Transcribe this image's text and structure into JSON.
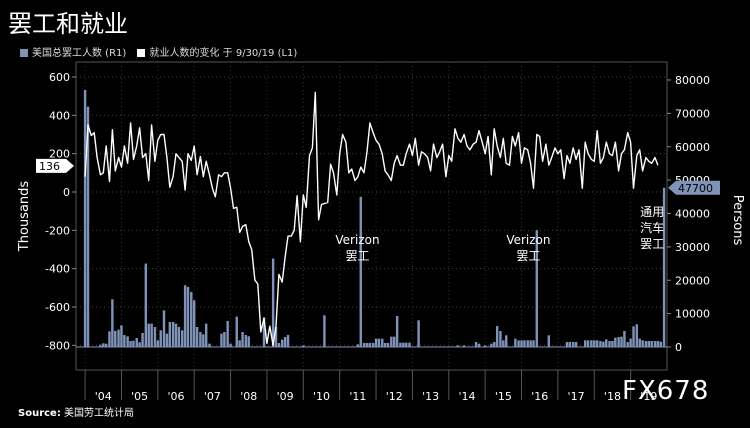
{
  "title": "罢工和就业",
  "legend": {
    "bars_label": "美国总罢工人数 (R1)",
    "line_label": "就业人数的变化 于 9/30/19 (L1)",
    "bar_color": "#7f93b8",
    "line_color": "#ffffff"
  },
  "source": {
    "prefix": "Source:",
    "text": "美国劳工统计局"
  },
  "watermark": "FX678",
  "chart_data": {
    "type": "bar+line",
    "left_axis": {
      "label": "Thousands",
      "ticks": [
        600,
        400,
        200,
        0,
        -200,
        -400,
        -600,
        -800
      ],
      "range": [
        -800,
        640
      ]
    },
    "right_axis": {
      "label": "Persons",
      "ticks": [
        80000,
        70000,
        60000,
        50000,
        40000,
        30000,
        20000,
        10000,
        0
      ],
      "range": [
        0,
        85000
      ]
    },
    "x_labels": [
      "'04",
      "'05",
      "'06",
      "'07",
      "'08",
      "'09",
      "'10",
      "'11",
      "'12",
      "'13",
      "'14",
      "'15",
      "'16",
      "'17",
      "'18",
      "'19"
    ],
    "current_line_value": "136",
    "current_bar_value": "47700",
    "annotations": [
      {
        "lines": [
          "Verizon",
          "罢工"
        ],
        "date": 2011.6
      },
      {
        "lines": [
          "Verizon",
          "罢工"
        ],
        "date": 2016.3
      },
      {
        "lines": [
          "通用",
          "汽车",
          "罢工"
        ],
        "date": 2019.7
      }
    ],
    "bars": [
      [
        2004.0,
        77000
      ],
      [
        2004.08,
        72000
      ],
      [
        2004.17,
        0
      ],
      [
        2004.25,
        0
      ],
      [
        2004.33,
        0
      ],
      [
        2004.42,
        700
      ],
      [
        2004.5,
        1100
      ],
      [
        2004.58,
        1000
      ],
      [
        2004.67,
        4700
      ],
      [
        2004.75,
        14300
      ],
      [
        2004.83,
        4800
      ],
      [
        2004.92,
        5200
      ],
      [
        2005.0,
        6500
      ],
      [
        2005.08,
        3600
      ],
      [
        2005.17,
        3200
      ],
      [
        2005.25,
        1800
      ],
      [
        2005.33,
        1900
      ],
      [
        2005.42,
        2700
      ],
      [
        2005.5,
        1400
      ],
      [
        2005.58,
        4200
      ],
      [
        2005.67,
        25000
      ],
      [
        2005.75,
        7000
      ],
      [
        2005.83,
        7000
      ],
      [
        2005.92,
        6000
      ],
      [
        2006.0,
        2000
      ],
      [
        2006.08,
        5000
      ],
      [
        2006.17,
        11000
      ],
      [
        2006.25,
        4000
      ],
      [
        2006.33,
        7500
      ],
      [
        2006.42,
        7500
      ],
      [
        2006.5,
        7000
      ],
      [
        2006.58,
        6000
      ],
      [
        2006.67,
        5000
      ],
      [
        2006.75,
        18500
      ],
      [
        2006.83,
        18000
      ],
      [
        2006.92,
        16500
      ],
      [
        2007.0,
        14000
      ],
      [
        2007.08,
        6000
      ],
      [
        2007.17,
        4500
      ],
      [
        2007.25,
        3800
      ],
      [
        2007.33,
        7000
      ],
      [
        2007.42,
        1000
      ],
      [
        2007.5,
        0
      ],
      [
        2007.58,
        0
      ],
      [
        2007.67,
        0
      ],
      [
        2007.75,
        4000
      ],
      [
        2007.83,
        4500
      ],
      [
        2007.92,
        7800
      ],
      [
        2008.0,
        1000
      ],
      [
        2008.08,
        0
      ],
      [
        2008.17,
        9100
      ],
      [
        2008.25,
        2000
      ],
      [
        2008.33,
        4500
      ],
      [
        2008.42,
        3600
      ],
      [
        2008.5,
        3200
      ],
      [
        2008.58,
        0
      ],
      [
        2008.67,
        0
      ],
      [
        2008.75,
        0
      ],
      [
        2008.83,
        0
      ],
      [
        2008.92,
        8900
      ],
      [
        2009.0,
        0
      ],
      [
        2009.08,
        0
      ],
      [
        2009.17,
        26500
      ],
      [
        2009.25,
        6000
      ],
      [
        2009.33,
        1200
      ],
      [
        2009.42,
        2200
      ],
      [
        2009.5,
        3000
      ],
      [
        2009.58,
        3600
      ],
      [
        2009.67,
        0
      ],
      [
        2009.75,
        0
      ],
      [
        2009.83,
        0
      ],
      [
        2009.92,
        0
      ],
      [
        2010.0,
        500
      ],
      [
        2010.08,
        0
      ],
      [
        2010.17,
        0
      ],
      [
        2010.25,
        0
      ],
      [
        2010.33,
        0
      ],
      [
        2010.42,
        0
      ],
      [
        2010.5,
        0
      ],
      [
        2010.58,
        9500
      ],
      [
        2010.67,
        0
      ],
      [
        2010.75,
        0
      ],
      [
        2010.83,
        0
      ],
      [
        2010.92,
        0
      ],
      [
        2011.0,
        0
      ],
      [
        2011.08,
        0
      ],
      [
        2011.17,
        0
      ],
      [
        2011.25,
        0
      ],
      [
        2011.33,
        0
      ],
      [
        2011.42,
        0
      ],
      [
        2011.5,
        800
      ],
      [
        2011.58,
        45000
      ],
      [
        2011.67,
        1200
      ],
      [
        2011.75,
        1200
      ],
      [
        2011.83,
        1200
      ],
      [
        2011.92,
        1200
      ],
      [
        2012.0,
        2500
      ],
      [
        2012.08,
        2500
      ],
      [
        2012.17,
        2500
      ],
      [
        2012.25,
        1200
      ],
      [
        2012.33,
        1200
      ],
      [
        2012.42,
        3100
      ],
      [
        2012.5,
        3100
      ],
      [
        2012.58,
        9300
      ],
      [
        2012.67,
        1300
      ],
      [
        2012.75,
        1300
      ],
      [
        2012.83,
        1300
      ],
      [
        2012.92,
        1300
      ],
      [
        2013.0,
        0
      ],
      [
        2013.08,
        0
      ],
      [
        2013.17,
        8000
      ],
      [
        2013.25,
        0
      ],
      [
        2013.33,
        0
      ],
      [
        2013.42,
        0
      ],
      [
        2013.5,
        0
      ],
      [
        2013.58,
        0
      ],
      [
        2013.67,
        0
      ],
      [
        2013.75,
        0
      ],
      [
        2013.83,
        0
      ],
      [
        2013.92,
        0
      ],
      [
        2014.0,
        0
      ],
      [
        2014.08,
        0
      ],
      [
        2014.17,
        0
      ],
      [
        2014.25,
        500
      ],
      [
        2014.33,
        0
      ],
      [
        2014.42,
        500
      ],
      [
        2014.5,
        0
      ],
      [
        2014.58,
        0
      ],
      [
        2014.67,
        0
      ],
      [
        2014.75,
        1500
      ],
      [
        2014.83,
        1000
      ],
      [
        2014.92,
        0
      ],
      [
        2015.0,
        500
      ],
      [
        2015.08,
        0
      ],
      [
        2015.17,
        1000
      ],
      [
        2015.25,
        1500
      ],
      [
        2015.33,
        6300
      ],
      [
        2015.42,
        4800
      ],
      [
        2015.5,
        2000
      ],
      [
        2015.58,
        3500
      ],
      [
        2015.67,
        0
      ],
      [
        2015.75,
        0
      ],
      [
        2015.83,
        2500
      ],
      [
        2015.92,
        2000
      ],
      [
        2016.0,
        2000
      ],
      [
        2016.08,
        2000
      ],
      [
        2016.17,
        2000
      ],
      [
        2016.25,
        2000
      ],
      [
        2016.33,
        2000
      ],
      [
        2016.42,
        35000
      ],
      [
        2016.5,
        0
      ],
      [
        2016.58,
        0
      ],
      [
        2016.67,
        0
      ],
      [
        2016.75,
        3500
      ],
      [
        2016.83,
        0
      ],
      [
        2016.92,
        0
      ],
      [
        2017.0,
        0
      ],
      [
        2017.08,
        0
      ],
      [
        2017.17,
        0
      ],
      [
        2017.25,
        1500
      ],
      [
        2017.33,
        1500
      ],
      [
        2017.42,
        1500
      ],
      [
        2017.5,
        1500
      ],
      [
        2017.58,
        0
      ],
      [
        2017.67,
        0
      ],
      [
        2017.75,
        2000
      ],
      [
        2017.83,
        2000
      ],
      [
        2017.92,
        2000
      ],
      [
        2018.0,
        2000
      ],
      [
        2018.08,
        2000
      ],
      [
        2018.17,
        1800
      ],
      [
        2018.25,
        1600
      ],
      [
        2018.33,
        2300
      ],
      [
        2018.42,
        1800
      ],
      [
        2018.5,
        1800
      ],
      [
        2018.58,
        2800
      ],
      [
        2018.67,
        3000
      ],
      [
        2018.75,
        3100
      ],
      [
        2018.83,
        4800
      ],
      [
        2018.92,
        1500
      ],
      [
        2019.0,
        2500
      ],
      [
        2019.08,
        6200
      ],
      [
        2019.17,
        6800
      ],
      [
        2019.25,
        2500
      ],
      [
        2019.33,
        2000
      ],
      [
        2019.42,
        1800
      ],
      [
        2019.5,
        1800
      ],
      [
        2019.58,
        1800
      ],
      [
        2019.67,
        1800
      ],
      [
        2019.75,
        1800
      ],
      [
        2019.83,
        1600
      ],
      [
        2019.92,
        47700
      ]
    ],
    "line": [
      [
        2004.0,
        80
      ],
      [
        2004.08,
        350
      ],
      [
        2004.17,
        295
      ],
      [
        2004.25,
        310
      ],
      [
        2004.33,
        180
      ],
      [
        2004.42,
        90
      ],
      [
        2004.5,
        100
      ],
      [
        2004.58,
        240
      ],
      [
        2004.67,
        55
      ],
      [
        2004.75,
        325
      ],
      [
        2004.83,
        110
      ],
      [
        2004.92,
        180
      ],
      [
        2005.0,
        130
      ],
      [
        2005.08,
        240
      ],
      [
        2005.17,
        150
      ],
      [
        2005.25,
        360
      ],
      [
        2005.33,
        170
      ],
      [
        2005.42,
        240
      ],
      [
        2005.5,
        335
      ],
      [
        2005.58,
        180
      ],
      [
        2005.67,
        200
      ],
      [
        2005.75,
        60
      ],
      [
        2005.83,
        350
      ],
      [
        2005.92,
        160
      ],
      [
        2006.0,
        270
      ],
      [
        2006.08,
        300
      ],
      [
        2006.17,
        300
      ],
      [
        2006.25,
        180
      ],
      [
        2006.33,
        25
      ],
      [
        2006.42,
        80
      ],
      [
        2006.5,
        200
      ],
      [
        2006.58,
        180
      ],
      [
        2006.67,
        160
      ],
      [
        2006.75,
        10
      ],
      [
        2006.83,
        200
      ],
      [
        2006.92,
        165
      ],
      [
        2007.0,
        240
      ],
      [
        2007.08,
        90
      ],
      [
        2007.17,
        185
      ],
      [
        2007.25,
        80
      ],
      [
        2007.33,
        160
      ],
      [
        2007.42,
        90
      ],
      [
        2007.5,
        20
      ],
      [
        2007.58,
        -25
      ],
      [
        2007.67,
        90
      ],
      [
        2007.75,
        80
      ],
      [
        2007.83,
        100
      ],
      [
        2007.92,
        100
      ],
      [
        2008.0,
        20
      ],
      [
        2008.08,
        -85
      ],
      [
        2008.17,
        -80
      ],
      [
        2008.25,
        -210
      ],
      [
        2008.33,
        -180
      ],
      [
        2008.42,
        -170
      ],
      [
        2008.5,
        -260
      ],
      [
        2008.58,
        -300
      ],
      [
        2008.67,
        -460
      ],
      [
        2008.75,
        -480
      ],
      [
        2008.83,
        -730
      ],
      [
        2008.92,
        -660
      ],
      [
        2009.0,
        -790
      ],
      [
        2009.08,
        -700
      ],
      [
        2009.17,
        -800
      ],
      [
        2009.25,
        -700
      ],
      [
        2009.33,
        -430
      ],
      [
        2009.42,
        -470
      ],
      [
        2009.5,
        -340
      ],
      [
        2009.58,
        -230
      ],
      [
        2009.67,
        -230
      ],
      [
        2009.75,
        -200
      ],
      [
        2009.83,
        -20
      ],
      [
        2009.92,
        -260
      ],
      [
        2010.0,
        -15
      ],
      [
        2010.08,
        -80
      ],
      [
        2010.17,
        190
      ],
      [
        2010.25,
        230
      ],
      [
        2010.33,
        520
      ],
      [
        2010.42,
        -145
      ],
      [
        2010.5,
        -65
      ],
      [
        2010.58,
        -60
      ],
      [
        2010.67,
        -55
      ],
      [
        2010.75,
        145
      ],
      [
        2010.83,
        100
      ],
      [
        2010.92,
        -15
      ],
      [
        2011.0,
        200
      ],
      [
        2011.08,
        300
      ],
      [
        2011.17,
        260
      ],
      [
        2011.25,
        100
      ],
      [
        2011.33,
        120
      ],
      [
        2011.42,
        60
      ],
      [
        2011.5,
        80
      ],
      [
        2011.58,
        130
      ],
      [
        2011.67,
        100
      ],
      [
        2011.75,
        210
      ],
      [
        2011.83,
        360
      ],
      [
        2011.92,
        310
      ],
      [
        2012.0,
        270
      ],
      [
        2012.08,
        250
      ],
      [
        2012.17,
        200
      ],
      [
        2012.25,
        110
      ],
      [
        2012.33,
        90
      ],
      [
        2012.42,
        60
      ],
      [
        2012.5,
        150
      ],
      [
        2012.58,
        190
      ],
      [
        2012.67,
        140
      ],
      [
        2012.75,
        140
      ],
      [
        2012.83,
        200
      ],
      [
        2012.92,
        250
      ],
      [
        2013.0,
        190
      ],
      [
        2013.08,
        280
      ],
      [
        2013.17,
        140
      ],
      [
        2013.25,
        210
      ],
      [
        2013.33,
        200
      ],
      [
        2013.42,
        180
      ],
      [
        2013.5,
        110
      ],
      [
        2013.58,
        250
      ],
      [
        2013.67,
        180
      ],
      [
        2013.75,
        210
      ],
      [
        2013.83,
        250
      ],
      [
        2013.92,
        80
      ],
      [
        2014.0,
        190
      ],
      [
        2014.08,
        160
      ],
      [
        2014.17,
        330
      ],
      [
        2014.25,
        280
      ],
      [
        2014.33,
        260
      ],
      [
        2014.42,
        300
      ],
      [
        2014.5,
        240
      ],
      [
        2014.58,
        220
      ],
      [
        2014.67,
        250
      ],
      [
        2014.75,
        260
      ],
      [
        2014.83,
        320
      ],
      [
        2014.92,
        260
      ],
      [
        2015.0,
        200
      ],
      [
        2015.08,
        290
      ],
      [
        2015.17,
        90
      ],
      [
        2015.25,
        330
      ],
      [
        2015.33,
        240
      ],
      [
        2015.42,
        180
      ],
      [
        2015.5,
        280
      ],
      [
        2015.58,
        150
      ],
      [
        2015.67,
        140
      ],
      [
        2015.75,
        290
      ],
      [
        2015.83,
        240
      ],
      [
        2015.92,
        310
      ],
      [
        2016.0,
        150
      ],
      [
        2016.08,
        230
      ],
      [
        2016.17,
        220
      ],
      [
        2016.25,
        150
      ],
      [
        2016.33,
        20
      ],
      [
        2016.42,
        300
      ],
      [
        2016.5,
        290
      ],
      [
        2016.58,
        160
      ],
      [
        2016.67,
        250
      ],
      [
        2016.75,
        140
      ],
      [
        2016.83,
        180
      ],
      [
        2016.92,
        230
      ],
      [
        2017.0,
        200
      ],
      [
        2017.08,
        220
      ],
      [
        2017.17,
        70
      ],
      [
        2017.25,
        190
      ],
      [
        2017.33,
        150
      ],
      [
        2017.42,
        230
      ],
      [
        2017.5,
        170
      ],
      [
        2017.58,
        220
      ],
      [
        2017.67,
        20
      ],
      [
        2017.75,
        260
      ],
      [
        2017.83,
        200
      ],
      [
        2017.92,
        170
      ],
      [
        2018.0,
        160
      ],
      [
        2018.08,
        320
      ],
      [
        2018.17,
        150
      ],
      [
        2018.25,
        180
      ],
      [
        2018.33,
        260
      ],
      [
        2018.42,
        200
      ],
      [
        2018.5,
        190
      ],
      [
        2018.58,
        260
      ],
      [
        2018.67,
        110
      ],
      [
        2018.75,
        200
      ],
      [
        2018.83,
        220
      ],
      [
        2018.92,
        310
      ],
      [
        2019.0,
        260
      ],
      [
        2019.08,
        20
      ],
      [
        2019.17,
        190
      ],
      [
        2019.25,
        220
      ],
      [
        2019.33,
        110
      ],
      [
        2019.42,
        180
      ],
      [
        2019.5,
        160
      ],
      [
        2019.58,
        150
      ],
      [
        2019.67,
        180
      ],
      [
        2019.75,
        140
      ]
    ]
  }
}
